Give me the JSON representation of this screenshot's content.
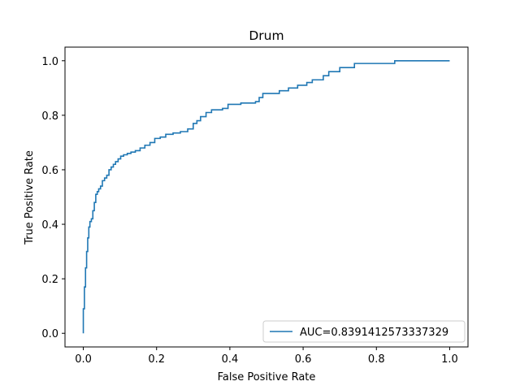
{
  "chart_data": {
    "type": "line",
    "title": "Drum",
    "xlabel": "False Positive Rate",
    "ylabel": "True Positive Rate",
    "xlim": [
      -0.05,
      1.05
    ],
    "ylim": [
      -0.05,
      1.05
    ],
    "xticks": [
      0.0,
      0.2,
      0.4,
      0.6,
      0.8,
      1.0
    ],
    "xtick_labels": [
      "0.0",
      "0.2",
      "0.4",
      "0.6",
      "0.8",
      "1.0"
    ],
    "yticks": [
      0.0,
      0.2,
      0.4,
      0.6,
      0.8,
      1.0
    ],
    "ytick_labels": [
      "0.0",
      "0.2",
      "0.4",
      "0.6",
      "0.8",
      "1.0"
    ],
    "grid": false,
    "legend_position": "lower-right",
    "series": [
      {
        "name": "AUC=0.8391412573337329",
        "color": "#1f77b4",
        "x": [
          0.0,
          0.0,
          0.003,
          0.003,
          0.006,
          0.006,
          0.009,
          0.009,
          0.012,
          0.012,
          0.015,
          0.015,
          0.018,
          0.018,
          0.022,
          0.022,
          0.026,
          0.026,
          0.03,
          0.03,
          0.034,
          0.034,
          0.038,
          0.038,
          0.042,
          0.042,
          0.047,
          0.047,
          0.052,
          0.052,
          0.058,
          0.058,
          0.064,
          0.064,
          0.07,
          0.07,
          0.076,
          0.076,
          0.082,
          0.082,
          0.088,
          0.088,
          0.095,
          0.095,
          0.102,
          0.102,
          0.11,
          0.11,
          0.12,
          0.12,
          0.13,
          0.13,
          0.142,
          0.142,
          0.155,
          0.155,
          0.168,
          0.168,
          0.182,
          0.182,
          0.195,
          0.195,
          0.21,
          0.21,
          0.225,
          0.225,
          0.245,
          0.245,
          0.265,
          0.265,
          0.285,
          0.285,
          0.3,
          0.3,
          0.31,
          0.31,
          0.32,
          0.32,
          0.335,
          0.335,
          0.35,
          0.35,
          0.38,
          0.38,
          0.395,
          0.395,
          0.43,
          0.43,
          0.47,
          0.47,
          0.48,
          0.48,
          0.49,
          0.49,
          0.535,
          0.535,
          0.56,
          0.56,
          0.585,
          0.585,
          0.61,
          0.61,
          0.625,
          0.625,
          0.655,
          0.655,
          0.67,
          0.67,
          0.7,
          0.7,
          0.74,
          0.74,
          0.85,
          0.85,
          1.0
        ],
        "y": [
          0.0,
          0.09,
          0.09,
          0.17,
          0.17,
          0.24,
          0.24,
          0.3,
          0.3,
          0.35,
          0.35,
          0.39,
          0.39,
          0.41,
          0.41,
          0.42,
          0.42,
          0.45,
          0.45,
          0.48,
          0.48,
          0.51,
          0.51,
          0.52,
          0.52,
          0.53,
          0.53,
          0.54,
          0.54,
          0.56,
          0.56,
          0.57,
          0.57,
          0.58,
          0.58,
          0.6,
          0.6,
          0.61,
          0.61,
          0.62,
          0.62,
          0.63,
          0.63,
          0.64,
          0.64,
          0.65,
          0.65,
          0.655,
          0.655,
          0.66,
          0.66,
          0.665,
          0.665,
          0.67,
          0.67,
          0.68,
          0.68,
          0.69,
          0.69,
          0.7,
          0.7,
          0.715,
          0.715,
          0.72,
          0.72,
          0.73,
          0.73,
          0.735,
          0.735,
          0.74,
          0.74,
          0.75,
          0.75,
          0.77,
          0.77,
          0.78,
          0.78,
          0.795,
          0.795,
          0.81,
          0.81,
          0.82,
          0.82,
          0.825,
          0.825,
          0.84,
          0.84,
          0.845,
          0.845,
          0.85,
          0.85,
          0.865,
          0.865,
          0.88,
          0.88,
          0.89,
          0.89,
          0.9,
          0.9,
          0.91,
          0.91,
          0.92,
          0.92,
          0.93,
          0.93,
          0.945,
          0.945,
          0.96,
          0.96,
          0.975,
          0.975,
          0.99,
          0.99,
          1.0,
          1.0
        ]
      }
    ]
  }
}
